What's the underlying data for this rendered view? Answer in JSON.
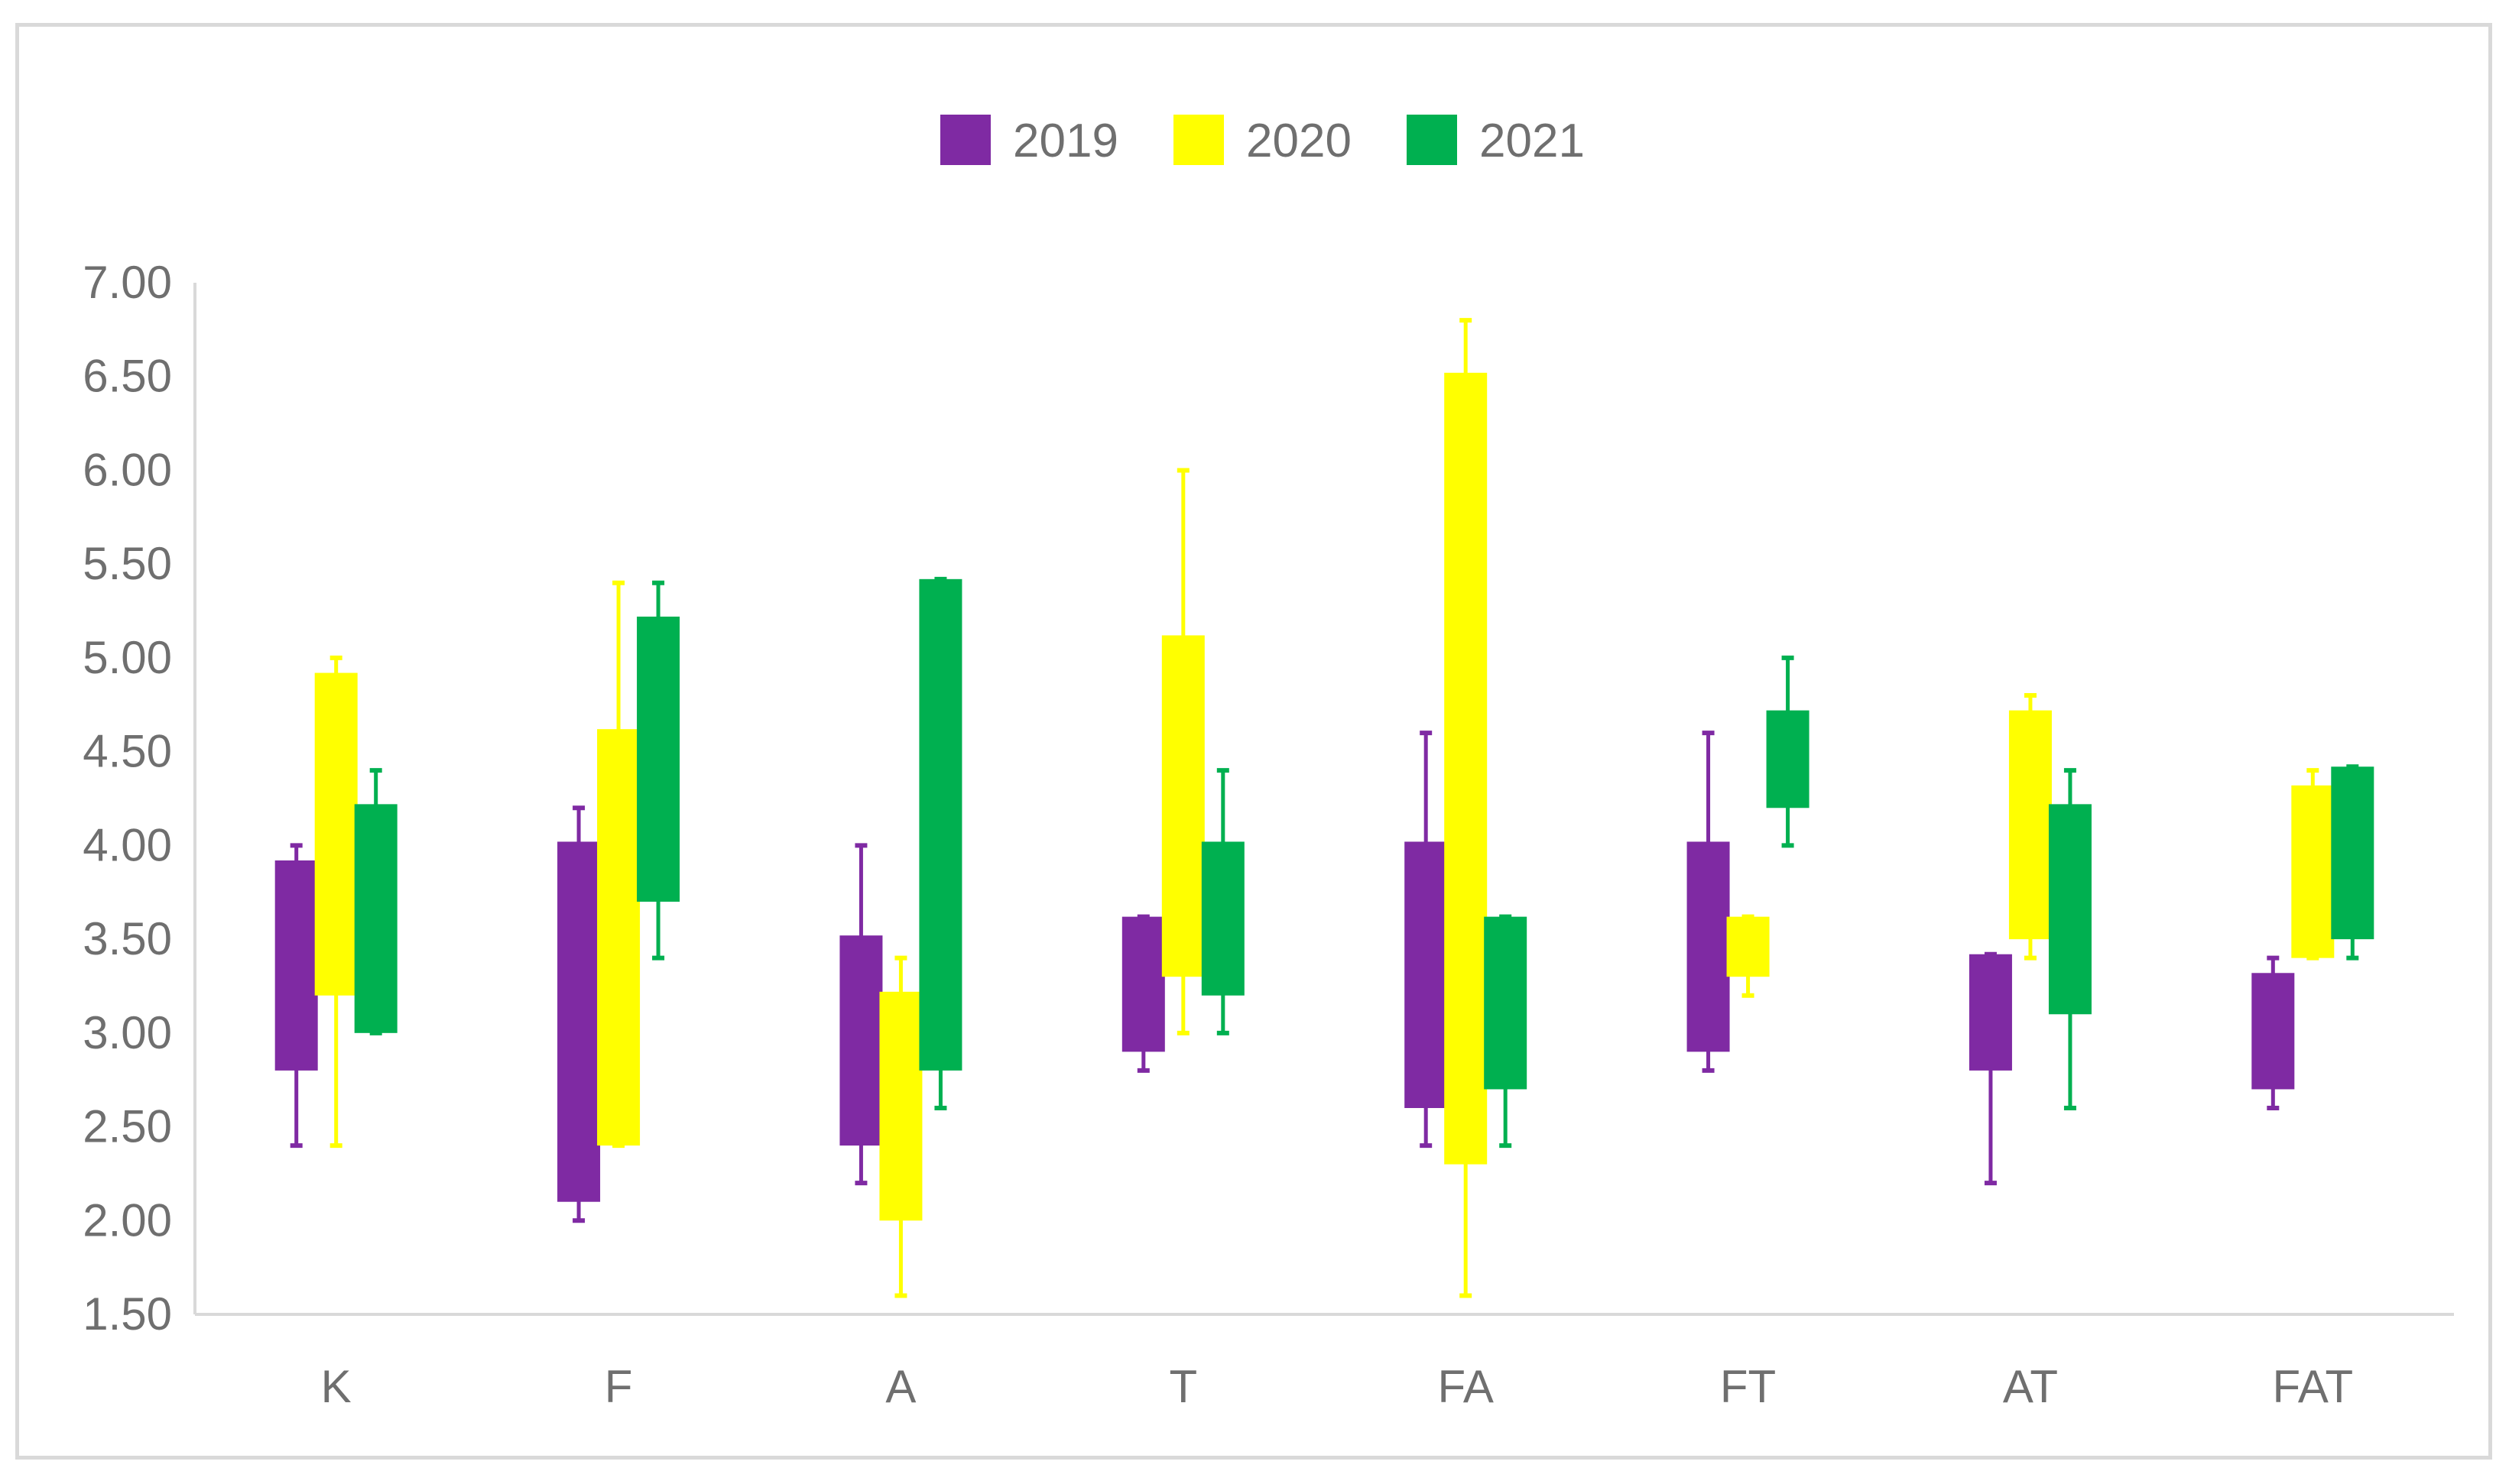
{
  "chart_data": {
    "type": "box",
    "title": "",
    "xlabel": "",
    "ylabel": "",
    "categories": [
      "K",
      "F",
      "A",
      "T",
      "FA",
      "FT",
      "AT",
      "FAT"
    ],
    "ylim": [
      1.5,
      7.0
    ],
    "yticks": [
      "1.50",
      "2.00",
      "2.50",
      "3.00",
      "3.50",
      "4.00",
      "4.50",
      "5.00",
      "5.50",
      "6.00",
      "6.50",
      "7.00"
    ],
    "grid": false,
    "legend_position": "top-center",
    "series": [
      {
        "name": "2019",
        "color": "#7f2aa3",
        "boxes": [
          {
            "low": 2.4,
            "q1": 2.8,
            "q3": 3.92,
            "high": 4.0
          },
          {
            "low": 2.0,
            "q1": 2.1,
            "q3": 4.02,
            "high": 4.2
          },
          {
            "low": 2.2,
            "q1": 2.4,
            "q3": 3.52,
            "high": 4.0
          },
          {
            "low": 2.8,
            "q1": 2.9,
            "q3": 3.62,
            "high": 3.62
          },
          {
            "low": 2.4,
            "q1": 2.6,
            "q3": 4.02,
            "high": 4.6
          },
          {
            "low": 2.8,
            "q1": 2.9,
            "q3": 4.02,
            "high": 4.6
          },
          {
            "low": 2.2,
            "q1": 2.8,
            "q3": 3.42,
            "high": 3.42
          },
          {
            "low": 2.6,
            "q1": 2.7,
            "q3": 3.32,
            "high": 3.4
          }
        ]
      },
      {
        "name": "2020",
        "color": "#ffff00",
        "boxes": [
          {
            "low": 2.4,
            "q1": 3.2,
            "q3": 4.92,
            "high": 5.0
          },
          {
            "low": 2.4,
            "q1": 2.4,
            "q3": 4.62,
            "high": 5.4
          },
          {
            "low": 1.6,
            "q1": 2.0,
            "q3": 3.22,
            "high": 3.4
          },
          {
            "low": 3.0,
            "q1": 3.3,
            "q3": 5.12,
            "high": 6.0
          },
          {
            "low": 1.6,
            "q1": 2.3,
            "q3": 6.52,
            "high": 6.8
          },
          {
            "low": 3.2,
            "q1": 3.3,
            "q3": 3.62,
            "high": 3.62
          },
          {
            "low": 3.4,
            "q1": 3.5,
            "q3": 4.72,
            "high": 4.8
          },
          {
            "low": 3.4,
            "q1": 3.4,
            "q3": 4.32,
            "high": 4.4
          }
        ]
      },
      {
        "name": "2021",
        "color": "#00b050",
        "boxes": [
          {
            "low": 3.0,
            "q1": 3.0,
            "q3": 4.22,
            "high": 4.4
          },
          {
            "low": 3.4,
            "q1": 3.7,
            "q3": 5.22,
            "high": 5.4
          },
          {
            "low": 2.6,
            "q1": 2.8,
            "q3": 5.42,
            "high": 5.42
          },
          {
            "low": 3.0,
            "q1": 3.2,
            "q3": 4.02,
            "high": 4.4
          },
          {
            "low": 2.4,
            "q1": 2.7,
            "q3": 3.62,
            "high": 3.62
          },
          {
            "low": 4.0,
            "q1": 4.2,
            "q3": 4.72,
            "high": 5.0
          },
          {
            "low": 2.6,
            "q1": 3.1,
            "q3": 4.22,
            "high": 4.4
          },
          {
            "low": 3.4,
            "q1": 3.5,
            "q3": 4.42,
            "high": 4.42
          }
        ]
      }
    ]
  }
}
